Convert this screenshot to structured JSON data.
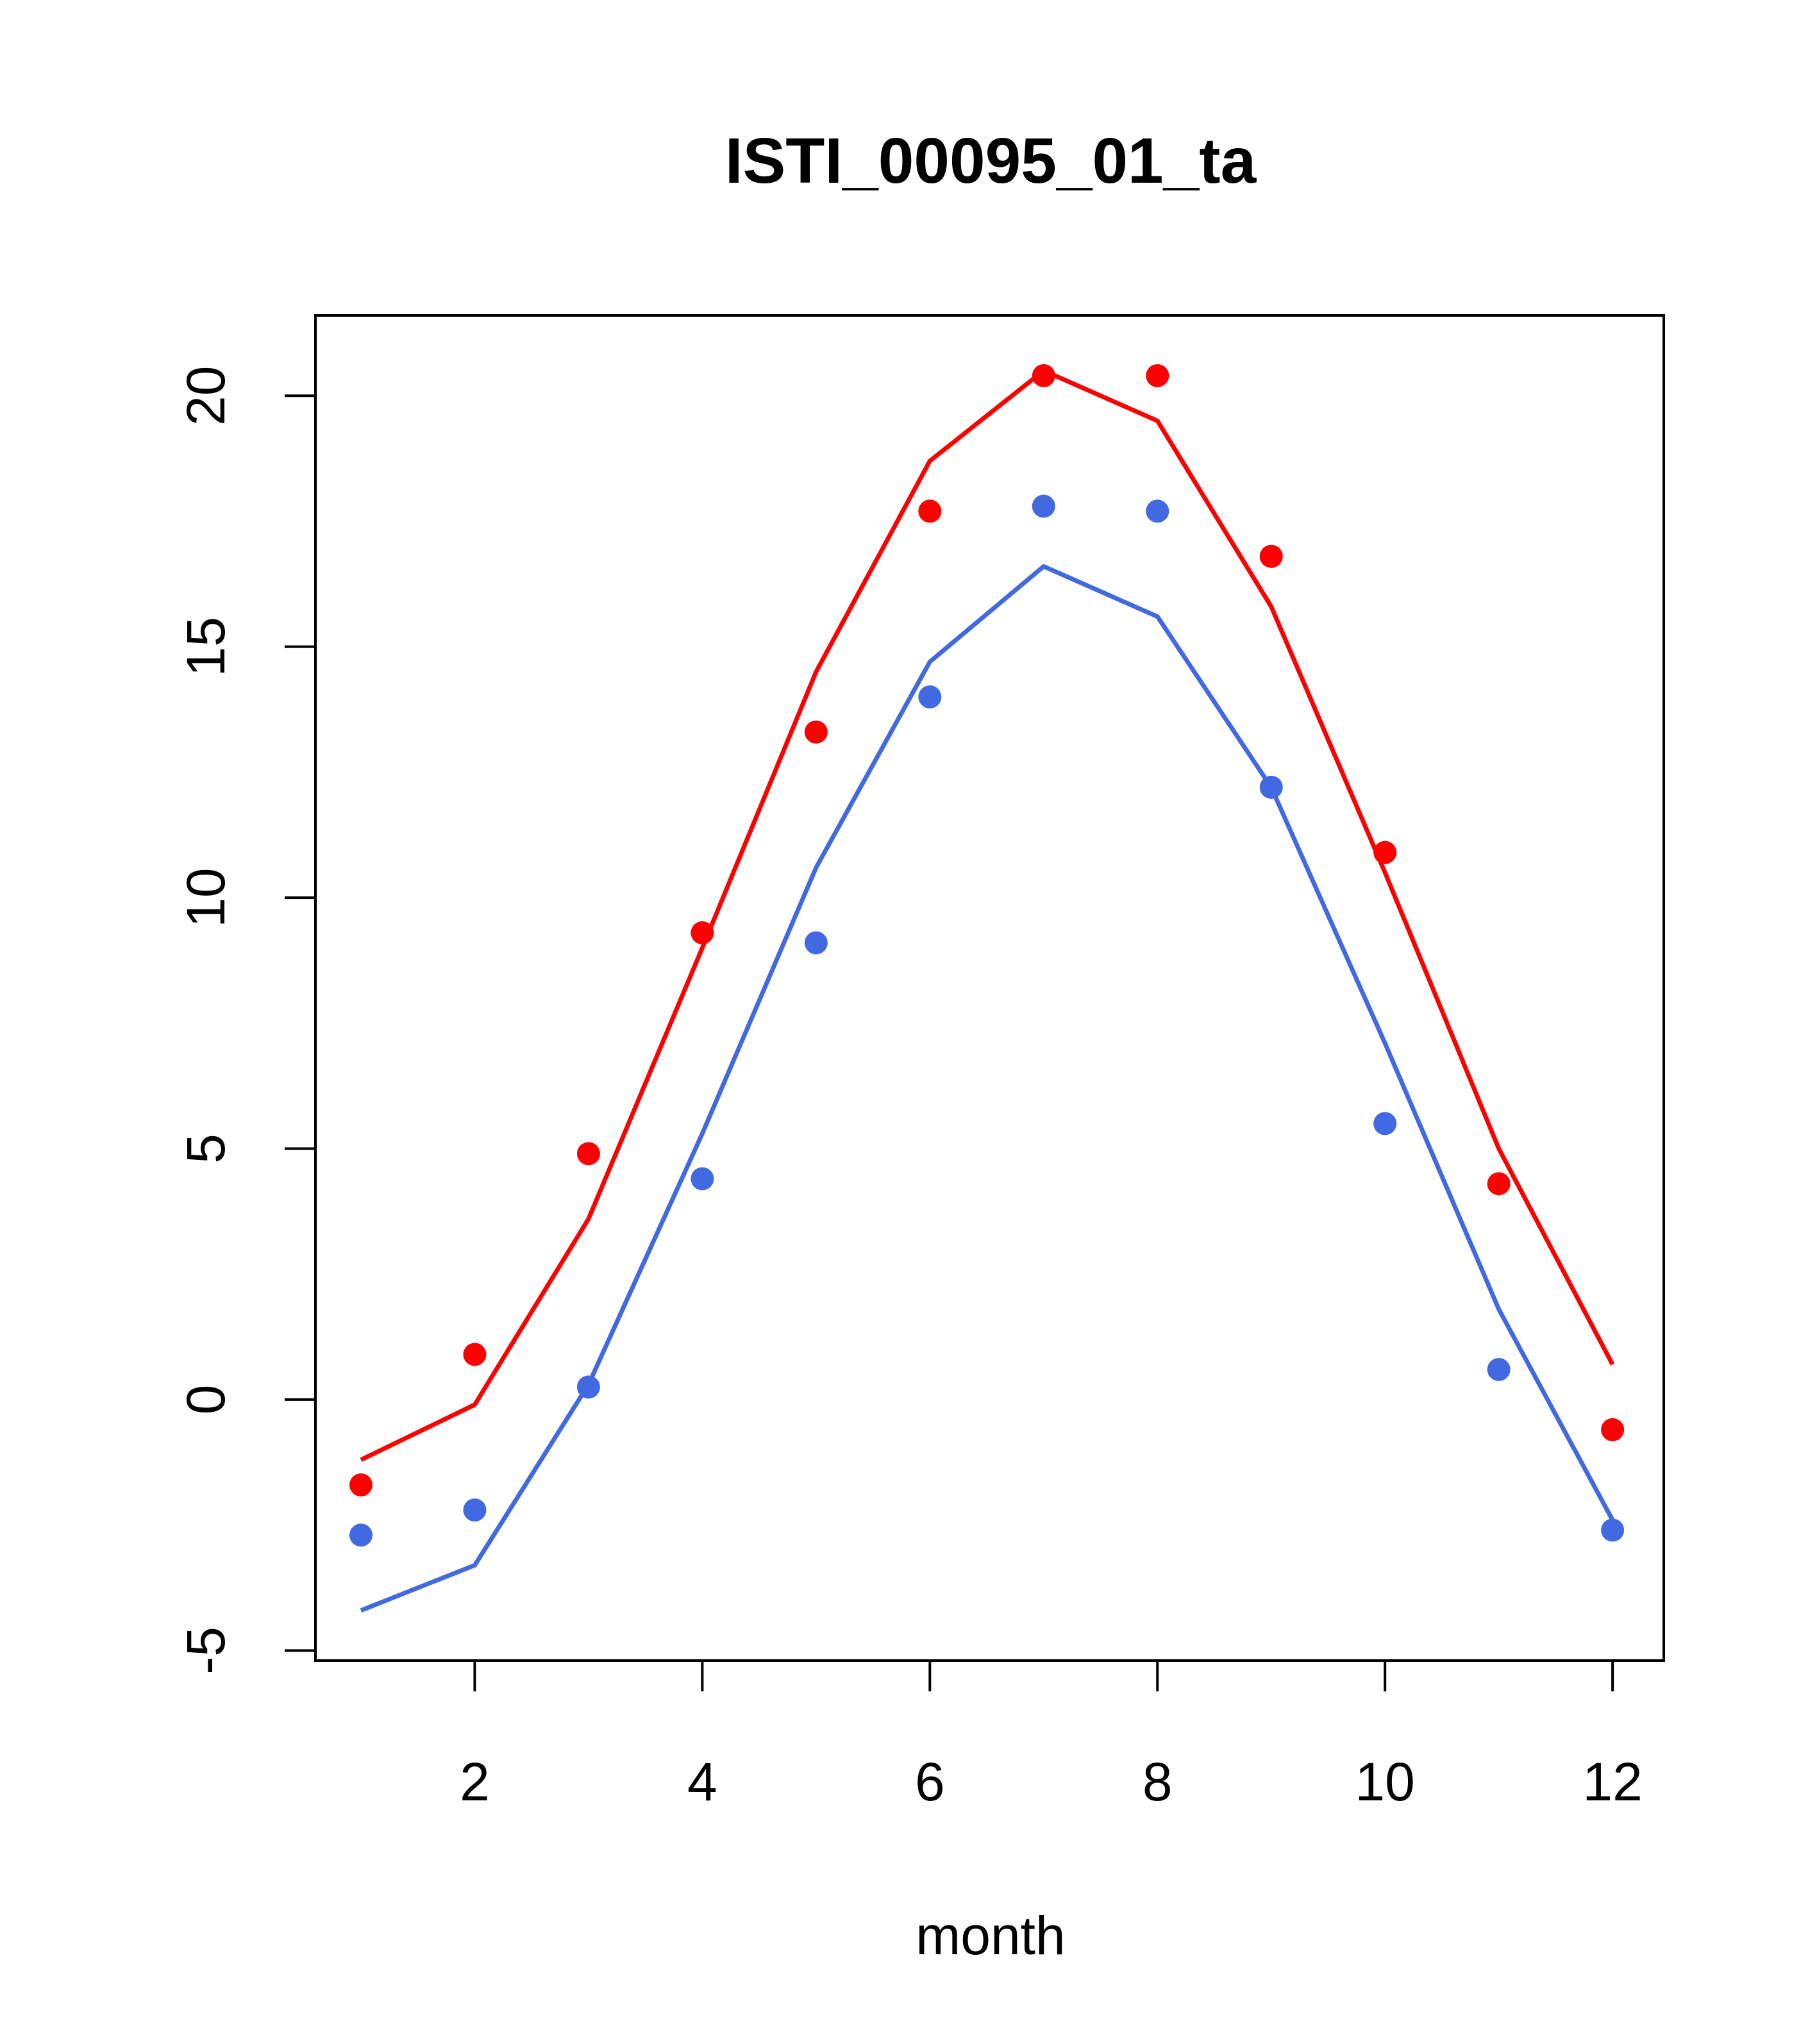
{
  "chart_data": {
    "type": "line",
    "title": "ISTI_00095_01_ta",
    "xlabel": "month",
    "ylabel": "",
    "xlim": [
      0.6,
      12.45
    ],
    "ylim": [
      -5.2,
      21.6
    ],
    "xticks": [
      2,
      4,
      6,
      8,
      10,
      12
    ],
    "yticks": [
      -5,
      0,
      5,
      10,
      15,
      20
    ],
    "x": [
      1,
      2,
      3,
      4,
      5,
      6,
      7,
      8,
      9,
      10,
      11,
      12
    ],
    "series": [
      {
        "color": "#FF0000",
        "line": [
          -1.2,
          -0.1,
          3.6,
          9.0,
          14.5,
          18.7,
          20.5,
          19.5,
          15.8,
          10.5,
          5.0,
          0.7
        ],
        "points": [
          -1.7,
          0.9,
          4.9,
          9.3,
          13.3,
          17.7,
          20.4,
          20.4,
          16.8,
          10.9,
          4.3,
          -0.6
        ]
      },
      {
        "color": "#4169E1",
        "line": [
          -4.2,
          -3.3,
          0.3,
          5.3,
          10.6,
          14.7,
          16.6,
          15.6,
          12.2,
          7.1,
          1.8,
          -2.4
        ],
        "points": [
          -2.7,
          -2.2,
          0.25,
          4.4,
          9.1,
          14.0,
          17.8,
          17.7,
          12.2,
          5.5,
          0.6,
          -2.6
        ]
      }
    ]
  }
}
